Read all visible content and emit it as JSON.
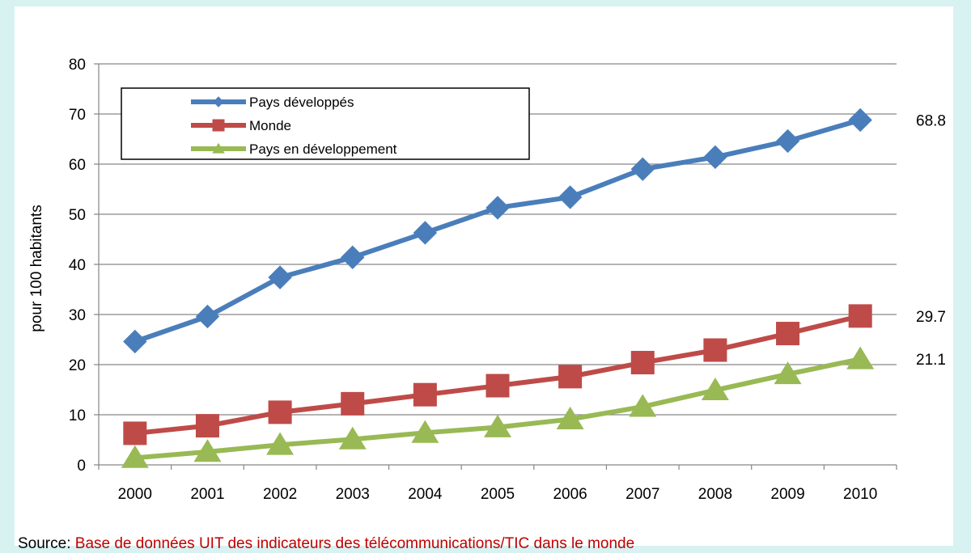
{
  "chart_data": {
    "type": "line",
    "title": "",
    "xlabel": "",
    "ylabel": "pour 100 habitants",
    "ylim": [
      0,
      80
    ],
    "yticks": [
      0,
      10,
      20,
      30,
      40,
      50,
      60,
      70,
      80
    ],
    "grid": true,
    "legend_position": "top-left",
    "categories": [
      "2000",
      "2001",
      "2002",
      "2003",
      "2004",
      "2005",
      "2006",
      "2007",
      "2008",
      "2009",
      "2010"
    ],
    "series": [
      {
        "name": "Pays développés",
        "color": "#4a7ebb",
        "marker": "diamond",
        "values": [
          24.6,
          29.6,
          37.4,
          41.4,
          46.3,
          51.3,
          53.4,
          59.0,
          61.4,
          64.6,
          68.8
        ],
        "end_label": "68.8"
      },
      {
        "name": "Monde",
        "color": "#be4b48",
        "marker": "square",
        "values": [
          6.3,
          7.8,
          10.5,
          12.2,
          14.0,
          15.8,
          17.6,
          20.4,
          22.9,
          26.2,
          29.7
        ],
        "end_label": "29.7"
      },
      {
        "name": "Pays en développement",
        "color": "#98b954",
        "marker": "triangle",
        "values": [
          1.4,
          2.6,
          4.0,
          5.1,
          6.4,
          7.5,
          9.1,
          11.6,
          14.9,
          18.1,
          21.1
        ],
        "end_label": "21.1"
      }
    ]
  },
  "source": {
    "prefix": "Source:",
    "rest": "Base de données UIT des indicateurs des télécommunications/TIC dans le monde"
  }
}
